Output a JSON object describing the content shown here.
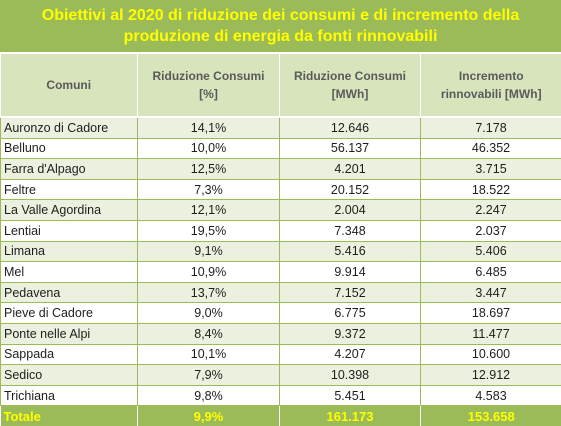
{
  "title": {
    "line1": "Obiettivi al 2020 di riduzione dei consumi e di incremento della",
    "line2": "produzione di energia  da fonti rinnovabili"
  },
  "headers": [
    {
      "line1": "Comuni",
      "line2": ""
    },
    {
      "line1": "Riduzione Consumi",
      "line2": "[%]"
    },
    {
      "line1": "Riduzione Consumi",
      "line2": "[MWh]"
    },
    {
      "line1": "Incremento",
      "line2": "rinnovabili [MWh]"
    }
  ],
  "rows": [
    [
      "Auronzo di Cadore",
      "14,1%",
      "12.646",
      "7.178"
    ],
    [
      "Belluno",
      "10,0%",
      "56.137",
      "46.352"
    ],
    [
      "Farra d'Alpago",
      "12,5%",
      "4.201",
      "3.715"
    ],
    [
      "Feltre",
      "7,3%",
      "20.152",
      "18.522"
    ],
    [
      "La Valle Agordina",
      "12,1%",
      "2.004",
      "2.247"
    ],
    [
      "Lentiai",
      "19,5%",
      "7.348",
      "2.037"
    ],
    [
      "Limana",
      "9,1%",
      "5.416",
      "5.406"
    ],
    [
      "Mel",
      "10,9%",
      "9.914",
      "6.485"
    ],
    [
      "Pedavena",
      "13,7%",
      "7.152",
      "3.447"
    ],
    [
      "Pieve di Cadore",
      "9,0%",
      "6.775",
      "18.697"
    ],
    [
      "Ponte nelle Alpi",
      "8,4%",
      "9.372",
      "11.477"
    ],
    [
      "Sappada",
      "10,1%",
      "4.207",
      "10.600"
    ],
    [
      "Sedico",
      "7,9%",
      "10.398",
      "12.912"
    ],
    [
      "Trichiana",
      "9,8%",
      "5.451",
      "4.583"
    ]
  ],
  "total": [
    "Totale",
    "9,9%",
    "161.173",
    "153.658"
  ],
  "colors": {
    "accent": "#9bbb59",
    "title_text": "#ffff00",
    "header_bg": "#d7e4bc",
    "row_shade": "#ebf1de"
  }
}
